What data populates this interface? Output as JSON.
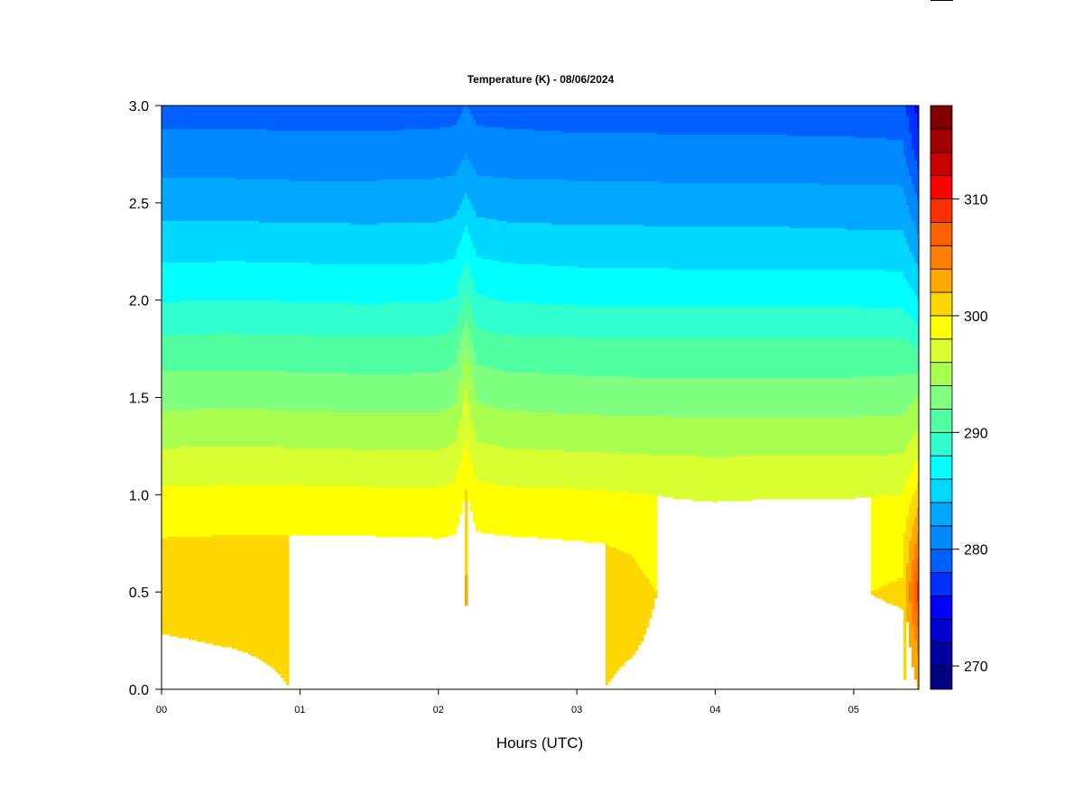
{
  "chart_data": {
    "type": "heatmap",
    "subtype": "filled-contour",
    "title": "Temperature (K) - 08/06/2024",
    "xlabel": "Hours (UTC)",
    "ylabel": "",
    "xlim": [
      0,
      5.47
    ],
    "ylim": [
      0,
      3.0
    ],
    "x_ticks": [
      0,
      1,
      2,
      3,
      4,
      5
    ],
    "x_tick_labels": [
      "00",
      "01",
      "02",
      "03",
      "04",
      "05"
    ],
    "y_ticks": [
      0,
      0.5,
      1.0,
      1.5,
      2.0,
      2.5,
      3.0
    ],
    "y_tick_labels": [
      "0.0",
      "0.5",
      "1.0",
      "1.5",
      "2.0",
      "2.5",
      "3.0"
    ],
    "colorbar": {
      "levels_min": 268,
      "levels_max": 318,
      "level_step": 2,
      "tick_values": [
        270,
        280,
        290,
        300,
        310
      ],
      "tick_labels": [
        "270",
        "280",
        "290",
        "300",
        "310"
      ],
      "colors": [
        "#000080",
        "#0000a0",
        "#0000d0",
        "#0000ff",
        "#0030ff",
        "#0060ff",
        "#0088ff",
        "#00a8ff",
        "#00d8ff",
        "#00ffff",
        "#30ffd0",
        "#50ffa0",
        "#80ff80",
        "#a8ff50",
        "#d8ff30",
        "#ffff00",
        "#ffd700",
        "#ffa800",
        "#ff8000",
        "#ff6000",
        "#ff3000",
        "#ff0000",
        "#c80000",
        "#a00000",
        "#800000"
      ]
    },
    "heights": [
      0,
      0.25,
      0.5,
      0.75,
      1.0,
      1.25,
      1.5,
      1.75,
      2.0,
      2.25,
      2.5,
      2.75,
      3.0
    ],
    "times": [
      0,
      0.5,
      1.0,
      1.5,
      2.0,
      2.12,
      2.2,
      2.28,
      2.5,
      3.0,
      3.4,
      3.7,
      4.0,
      4.5,
      5.0,
      5.35,
      5.47
    ],
    "temperature": [
      [
        299.3,
        299.9,
        300.6,
        300.2,
        298.4,
        295.9,
        293.3,
        290.9,
        287.9,
        285.4,
        283.1,
        280.9,
        279.1
      ],
      [
        299.4,
        300.1,
        300.7,
        300.3,
        298.5,
        296.0,
        293.4,
        290.9,
        288.0,
        285.5,
        283.1,
        280.9,
        279.2
      ],
      [
        300.1,
        300.3,
        300.6,
        300.3,
        298.5,
        295.9,
        293.3,
        290.8,
        287.9,
        285.4,
        283.0,
        280.8,
        279.1
      ],
      [
        300.0,
        300.4,
        300.6,
        300.3,
        298.4,
        295.8,
        293.2,
        290.7,
        287.8,
        285.3,
        283.0,
        280.8,
        279.1
      ],
      [
        300.2,
        300.4,
        300.6,
        300.2,
        298.4,
        295.8,
        293.2,
        290.8,
        287.9,
        285.4,
        283.1,
        280.9,
        279.2
      ],
      [
        300.2,
        300.5,
        300.7,
        300.3,
        298.6,
        296.2,
        293.6,
        291.2,
        288.2,
        285.7,
        283.3,
        281.0,
        279.3
      ],
      [
        300.4,
        301.2,
        302.3,
        301.5,
        300.2,
        298.2,
        296.5,
        294.0,
        290.5,
        287.5,
        284.5,
        282.0,
        280.0
      ],
      [
        300.2,
        300.5,
        300.8,
        300.4,
        298.7,
        296.2,
        293.7,
        291.2,
        288.3,
        285.7,
        283.3,
        281.0,
        279.3
      ],
      [
        300.1,
        300.4,
        300.6,
        300.3,
        298.4,
        295.9,
        293.3,
        290.8,
        287.9,
        285.4,
        283.1,
        280.9,
        279.2
      ],
      [
        300.2,
        300.3,
        300.5,
        300.1,
        298.3,
        295.7,
        293.1,
        290.7,
        287.7,
        285.2,
        283.0,
        280.8,
        279.0
      ],
      [
        299.8,
        300.1,
        300.3,
        299.9,
        298.1,
        295.6,
        293.0,
        290.6,
        287.7,
        285.2,
        283.0,
        280.8,
        279.0
      ],
      [
        299.5,
        299.7,
        299.8,
        299.3,
        297.9,
        295.5,
        293.0,
        290.6,
        287.6,
        285.1,
        282.9,
        280.7,
        279.0
      ],
      [
        299.4,
        299.6,
        299.7,
        299.2,
        297.8,
        295.5,
        293.0,
        290.6,
        287.6,
        285.1,
        282.9,
        280.7,
        279.0
      ],
      [
        299.4,
        299.6,
        299.8,
        299.3,
        297.9,
        295.5,
        293.0,
        290.6,
        287.6,
        285.1,
        282.9,
        280.7,
        278.9
      ],
      [
        299.5,
        299.6,
        299.9,
        299.3,
        297.9,
        295.5,
        293.0,
        290.6,
        287.6,
        285.0,
        282.8,
        280.6,
        278.9
      ],
      [
        299.5,
        299.6,
        300.2,
        299.5,
        298.0,
        295.6,
        293.1,
        290.7,
        287.5,
        285.0,
        282.8,
        280.5,
        278.8
      ],
      [
        302.0,
        305.0,
        309.0,
        305.0,
        301.0,
        297.0,
        294.0,
        290.0,
        286.0,
        283.0,
        280.0,
        277.0,
        275.0
      ]
    ]
  }
}
